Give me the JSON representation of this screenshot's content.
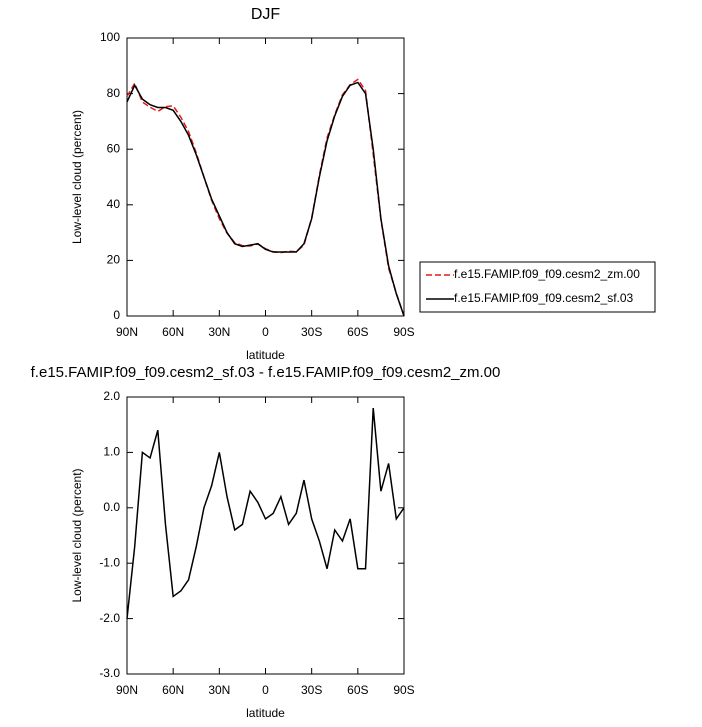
{
  "chart_data": [
    {
      "type": "line",
      "title": "DJF",
      "xlabel": "latitude",
      "ylabel": "Low-level cloud (percent)",
      "x": [
        90,
        85,
        80,
        75,
        70,
        65,
        60,
        55,
        50,
        45,
        40,
        35,
        30,
        25,
        20,
        15,
        10,
        5,
        0,
        -5,
        -10,
        -15,
        -20,
        -25,
        -30,
        -35,
        -40,
        -45,
        -50,
        -55,
        -60,
        -65,
        -70,
        -75,
        -80,
        -85,
        -90
      ],
      "xlim": [
        90,
        -90
      ],
      "xticks": [
        {
          "value": 90,
          "label": "90N"
        },
        {
          "value": 60,
          "label": "60N"
        },
        {
          "value": 30,
          "label": "30N"
        },
        0,
        {
          "value": -30,
          "label": "30S"
        },
        {
          "value": -60,
          "label": "60S"
        },
        {
          "value": -90,
          "label": "90S"
        }
      ],
      "ylim": [
        0,
        100
      ],
      "yticks": [
        0,
        20,
        40,
        60,
        80,
        100
      ],
      "series": [
        {
          "name": "f.e15.FAMIP.f09_f09.cesm2_zm.00",
          "color": "#e41a1c",
          "dash": "dashed",
          "values": [
            79,
            83.7,
            77,
            75.1,
            73.6,
            75.3,
            75.6,
            71.5,
            66.3,
            58.7,
            50,
            41.6,
            35,
            29.8,
            26.4,
            25.3,
            25.2,
            25.9,
            24.2,
            23.1,
            22.8,
            23.3,
            23.1,
            25.5,
            35.2,
            50.6,
            64.1,
            72.4,
            79.6,
            83.2,
            85.1,
            81.1,
            58.2,
            34.7,
            17.2,
            8.2,
            0
          ]
        },
        {
          "name": "f.e15.FAMIP.f09_f09.cesm2_sf.03",
          "color": "#000000",
          "dash": "solid",
          "values": [
            77,
            83,
            78,
            76,
            75,
            75,
            74,
            70,
            65,
            58,
            50,
            42,
            36,
            30,
            26,
            25,
            25.5,
            26,
            24,
            23,
            23,
            23,
            23,
            26,
            35,
            50,
            63,
            72,
            79,
            83,
            84,
            80,
            60,
            35,
            18,
            8,
            0
          ]
        }
      ]
    },
    {
      "type": "line",
      "title": "f.e15.FAMIP.f09_f09.cesm2_sf.03 - f.e15.FAMIP.f09_f09.cesm2_zm.00",
      "xlabel": "latitude",
      "ylabel": "Low-level cloud (percent)",
      "x": [
        90,
        85,
        80,
        75,
        70,
        65,
        60,
        55,
        50,
        45,
        40,
        35,
        30,
        25,
        20,
        15,
        10,
        5,
        0,
        -5,
        -10,
        -15,
        -20,
        -25,
        -30,
        -35,
        -40,
        -45,
        -50,
        -55,
        -60,
        -65,
        -70,
        -75,
        -80,
        -85,
        -90
      ],
      "xlim": [
        90,
        -90
      ],
      "xticks": [
        {
          "value": 90,
          "label": "90N"
        },
        {
          "value": 60,
          "label": "60N"
        },
        {
          "value": 30,
          "label": "30N"
        },
        0,
        {
          "value": -30,
          "label": "30S"
        },
        {
          "value": -60,
          "label": "60S"
        },
        {
          "value": -90,
          "label": "90S"
        }
      ],
      "ylim": [
        -3,
        2
      ],
      "yticks": [
        {
          "value": -3,
          "label": "-3.0"
        },
        {
          "value": -2,
          "label": "-2.0"
        },
        {
          "value": -1,
          "label": "-1.0"
        },
        {
          "value": 0,
          "label": "0.0"
        },
        {
          "value": 1,
          "label": "1.0"
        },
        {
          "value": 2,
          "label": "2.0"
        }
      ],
      "color": "#000000",
      "values": [
        -2.0,
        -0.7,
        1.0,
        0.9,
        1.4,
        -0.3,
        -1.6,
        -1.5,
        -1.3,
        -0.7,
        0.0,
        0.4,
        1.0,
        0.2,
        -0.4,
        -0.3,
        0.3,
        0.1,
        -0.2,
        -0.1,
        0.2,
        -0.3,
        -0.1,
        0.5,
        -0.2,
        -0.6,
        -1.1,
        -0.4,
        -0.6,
        -0.2,
        -1.1,
        -1.1,
        1.8,
        0.3,
        0.8,
        -0.2,
        0.0
      ]
    }
  ]
}
